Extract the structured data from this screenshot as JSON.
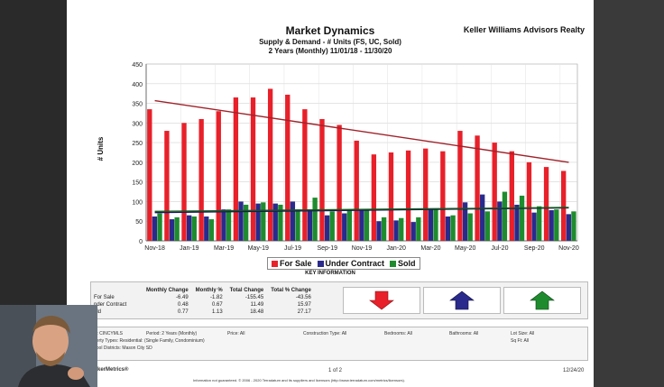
{
  "header": {
    "title": "Market Dynamics",
    "subtitle1": "Supply & Demand - # Units (FS, UC, Sold)",
    "subtitle2": "2 Years (Monthly) 11/01/18 - 11/30/20",
    "brand": "Keller Williams Advisors Realty"
  },
  "chart_data": {
    "type": "bar",
    "ylabel": "# Units",
    "ylim": [
      0,
      450
    ],
    "yticks": [
      0,
      50,
      100,
      150,
      200,
      250,
      300,
      350,
      400,
      450
    ],
    "xtick_labels": [
      "Nov-18",
      "Jan-19",
      "Mar-19",
      "May-19",
      "Jul-19",
      "Sep-19",
      "Nov-19",
      "Jan-20",
      "Mar-20",
      "May-20",
      "Jul-20",
      "Sep-20",
      "Nov-20"
    ],
    "categories": [
      "Nov-18",
      "Dec-18",
      "Jan-19",
      "Feb-19",
      "Mar-19",
      "Apr-19",
      "May-19",
      "Jun-19",
      "Jul-19",
      "Aug-19",
      "Sep-19",
      "Oct-19",
      "Nov-19",
      "Dec-19",
      "Jan-20",
      "Feb-20",
      "Mar-20",
      "Apr-20",
      "May-20",
      "Jun-20",
      "Jul-20",
      "Aug-20",
      "Sep-20",
      "Oct-20",
      "Nov-20"
    ],
    "series": [
      {
        "name": "For Sale",
        "color": "#e8202a",
        "values": [
          335,
          280,
          300,
          310,
          330,
          365,
          365,
          387,
          372,
          335,
          310,
          295,
          255,
          220,
          225,
          230,
          235,
          228,
          280,
          268,
          250,
          228,
          200,
          188,
          178
        ]
      },
      {
        "name": "Under Contract",
        "color": "#2a2a8c",
        "values": [
          62,
          55,
          65,
          62,
          80,
          100,
          95,
          95,
          100,
          80,
          65,
          70,
          78,
          50,
          52,
          48,
          80,
          62,
          98,
          118,
          100,
          92,
          72,
          78,
          68
        ]
      },
      {
        "name": "Sold",
        "color": "#1e8c2e",
        "values": [
          70,
          60,
          62,
          55,
          80,
          92,
          98,
          92,
          80,
          110,
          75,
          80,
          80,
          60,
          58,
          60,
          82,
          65,
          70,
          75,
          125,
          115,
          88,
          80,
          75
        ]
      }
    ],
    "trendlines": [
      {
        "series": "For Sale",
        "color": "#a0222a",
        "start": 357,
        "end": 200
      },
      {
        "series": "Under Contract",
        "color": "#1a1a5c",
        "start": 72,
        "end": 84
      },
      {
        "series": "Sold",
        "color": "#145a1e",
        "start": 75,
        "end": 85
      }
    ],
    "grid": true,
    "legend": "bottom"
  },
  "key": {
    "title": "KEY INFORMATION",
    "columns": [
      "Monthly Change",
      "Monthly %",
      "Total Change",
      "Total % Change"
    ],
    "rows": [
      {
        "label": "For Sale",
        "values": [
          "-6.49",
          "-1.82",
          "-155.45",
          "-43.56"
        ]
      },
      {
        "label": "nder Contract",
        "values": [
          "0.48",
          "0.67",
          "11.49",
          "15.97"
        ]
      },
      {
        "label": "old",
        "values": [
          "0.77",
          "1.13",
          "18.48",
          "27.17"
        ]
      }
    ],
    "arrows": [
      {
        "name": "for-sale-arrow",
        "color": "#e8202a",
        "direction": "down"
      },
      {
        "name": "under-contract-arrow",
        "color": "#2a2a8c",
        "direction": "up"
      },
      {
        "name": "sold-arrow",
        "color": "#1e8c2e",
        "direction": "up"
      }
    ]
  },
  "footer": {
    "mls_label": "S:",
    "mls_value": "CINCYMLS",
    "period_label": "Period:",
    "period_value": "2 Years (Monthly)",
    "price_label": "Price:",
    "price_value": "All",
    "construction_label": "Construction Type:",
    "construction_value": "All",
    "bedrooms_label": "Bedrooms:",
    "bedrooms_value": "All",
    "bathrooms_label": "Bathrooms:",
    "bathrooms_value": "All",
    "lotsize_label": "Lot Size:",
    "lotsize_value": "All",
    "ptype_label": "perty Types:",
    "ptype_value": "Residential: (Single Family, Condominium)",
    "sqft_label": "Sq Ft:",
    "sqft_value": "All",
    "district_label": "hool Districts:",
    "district_value": "Mason City SD",
    "brand": "kerMetrics®",
    "page": "1 of 2",
    "date": "12/24/20",
    "disclaimer": "Information not guaranteed. © 2006 - 2020 Terradatum and its suppliers and licensors (http://www.terradatum.com/metrics/licensors)."
  }
}
